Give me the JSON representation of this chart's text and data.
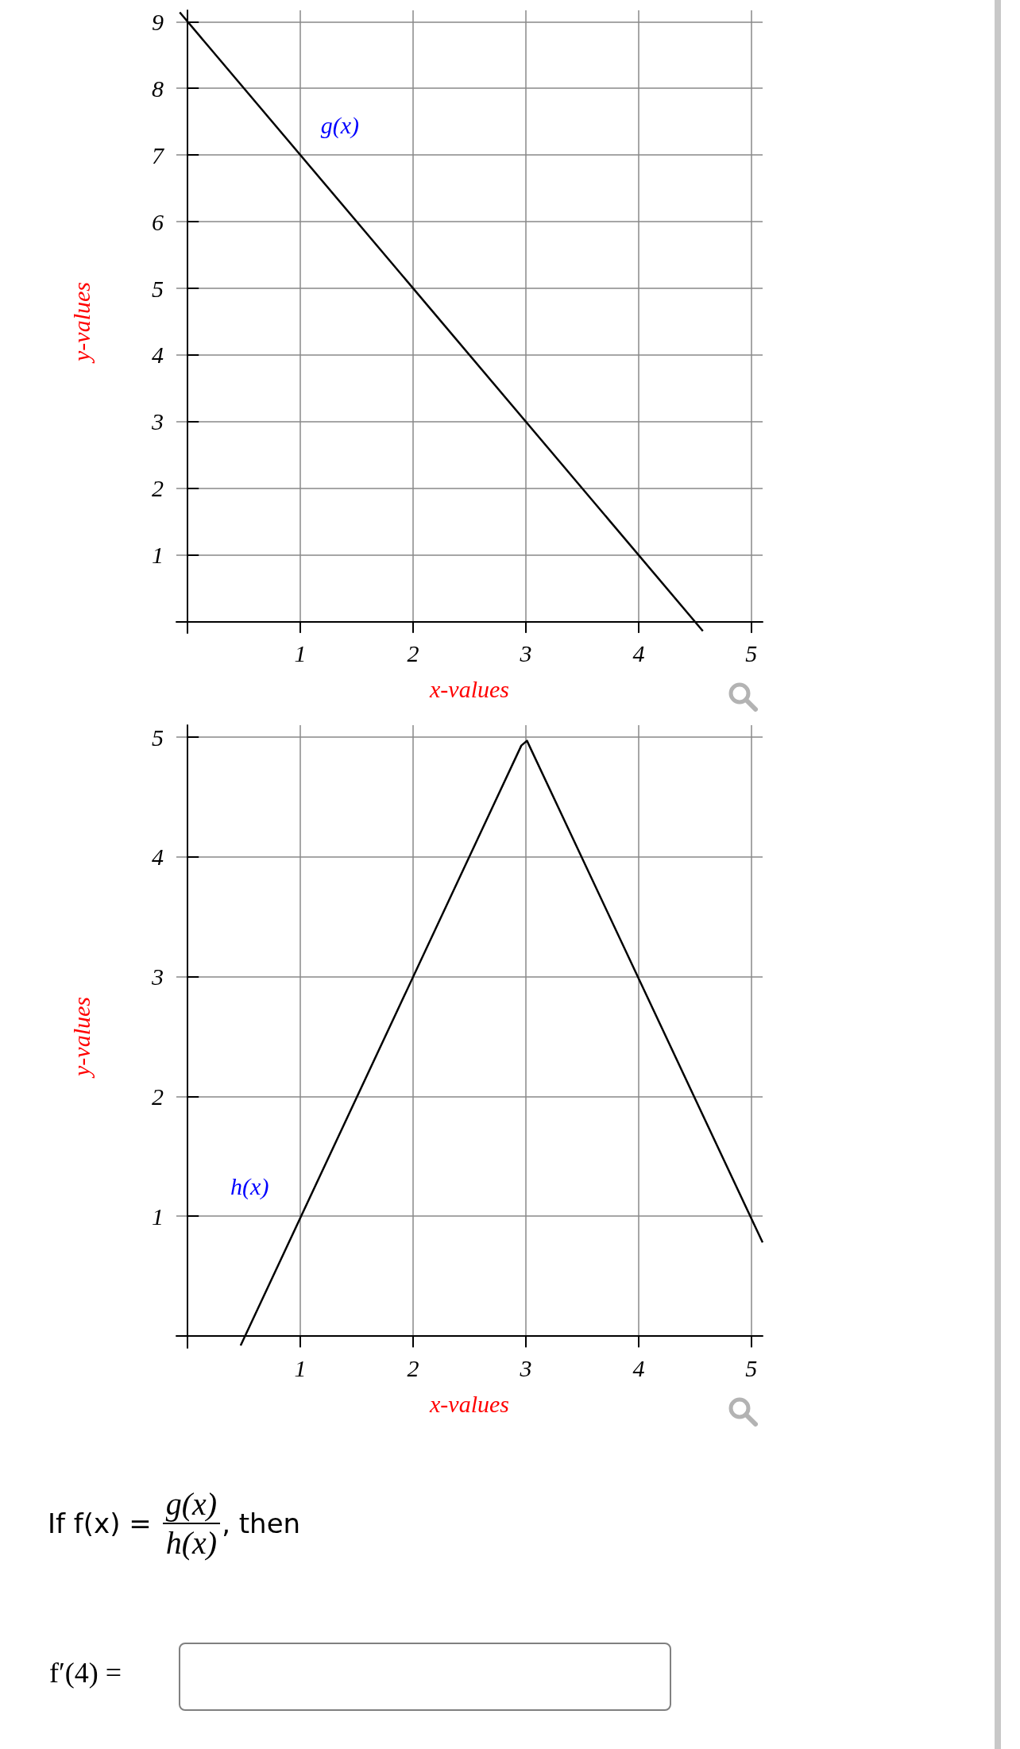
{
  "chart_data": [
    {
      "type": "line",
      "xlabel": "x-values",
      "ylabel": "y-values",
      "xlim": [
        -0.1,
        5.1
      ],
      "ylim": [
        -0.17,
        9.17
      ],
      "xticks": [
        1,
        2,
        3,
        4,
        5
      ],
      "yticks": [
        1,
        2,
        3,
        4,
        5,
        6,
        7,
        8,
        9
      ],
      "grid": true,
      "series": [
        {
          "name": "g(x)",
          "color": "#000000",
          "x": [
            -0.07,
            4.57
          ],
          "values": [
            9.14,
            -0.14
          ]
        }
      ]
    },
    {
      "type": "line",
      "xlabel": "x-values",
      "ylabel": "y-values",
      "xlim": [
        -0.1,
        5.1
      ],
      "ylim": [
        -0.1,
        5.1
      ],
      "xticks": [
        1,
        2,
        3,
        4,
        5
      ],
      "yticks": [
        1,
        2,
        3,
        4,
        5
      ],
      "grid": true,
      "series": [
        {
          "name": "h(x)",
          "color": "#000000",
          "x": [
            0.47,
            2.96,
            3.01,
            5.1
          ],
          "values": [
            -0.08,
            4.93,
            4.97,
            0.78
          ]
        }
      ]
    },
    {
      "type": "other",
      "annotations": [
        "If f(x) =",
        "g(x)",
        "h(x)",
        ", then",
        "f′(4) ="
      ]
    }
  ]
}
